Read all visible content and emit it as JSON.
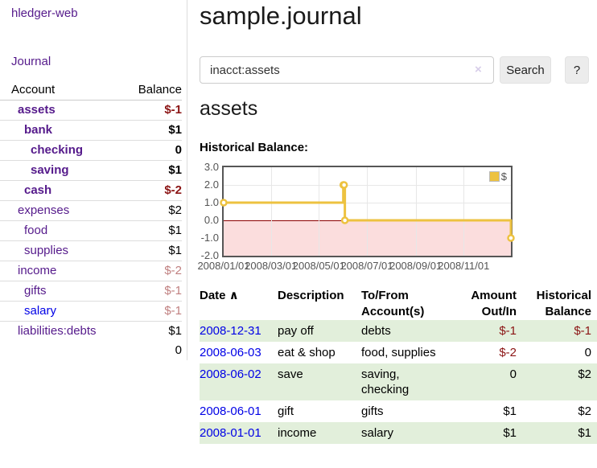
{
  "sidebar": {
    "brand": "hledger-web",
    "nav_journal": "Journal",
    "accounts_table": {
      "headers": {
        "account": "Account",
        "balance": "Balance"
      },
      "rows": [
        {
          "name": "assets",
          "depth": 1,
          "bold": true,
          "link": "purple",
          "balance": "$-1",
          "balance_style": "neg"
        },
        {
          "name": "bank",
          "depth": 2,
          "bold": true,
          "link": "purple",
          "balance": "$1",
          "balance_style": "pos"
        },
        {
          "name": "checking",
          "depth": 3,
          "bold": true,
          "link": "purple",
          "balance": "0",
          "balance_style": "pos"
        },
        {
          "name": "saving",
          "depth": 3,
          "bold": true,
          "link": "purple",
          "balance": "$1",
          "balance_style": "pos"
        },
        {
          "name": "cash",
          "depth": 2,
          "bold": true,
          "link": "purple",
          "balance": "$-2",
          "balance_style": "neg"
        },
        {
          "name": "expenses",
          "depth": 1,
          "bold": false,
          "link": "purple",
          "balance": "$2",
          "balance_style": "pos"
        },
        {
          "name": "food",
          "depth": 2,
          "bold": false,
          "link": "purple",
          "balance": "$1",
          "balance_style": "pos"
        },
        {
          "name": "supplies",
          "depth": 2,
          "bold": false,
          "link": "purple",
          "balance": "$1",
          "balance_style": "pos"
        },
        {
          "name": "income",
          "depth": 1,
          "bold": false,
          "link": "purple",
          "balance": "$-2",
          "balance_style": "negfade"
        },
        {
          "name": "gifts",
          "depth": 2,
          "bold": false,
          "link": "purple",
          "balance": "$-1",
          "balance_style": "negfade"
        },
        {
          "name": "salary",
          "depth": 2,
          "bold": false,
          "link": "blue",
          "balance": "$-1",
          "balance_style": "negfade"
        },
        {
          "name": "liabilities:debts",
          "depth": 1,
          "bold": false,
          "link": "purple",
          "balance": "$1",
          "balance_style": "pos"
        }
      ],
      "total": "0"
    }
  },
  "main": {
    "title": "sample.journal",
    "search": {
      "value": "inacct:assets",
      "clear_icon": "×",
      "button_label": "Search",
      "help_label": "?"
    },
    "account_heading": "assets",
    "chart": {
      "label": "Historical Balance:",
      "chart_data": {
        "type": "line",
        "step": true,
        "series": [
          {
            "name": "$",
            "color": "#EDC240",
            "points": [
              [
                "2008-01-01",
                1
              ],
              [
                "2008-06-01",
                2
              ],
              [
                "2008-06-02",
                2
              ],
              [
                "2008-06-03",
                0
              ],
              [
                "2008-12-31",
                -1
              ]
            ]
          }
        ],
        "x_range": [
          "2008-01-01",
          "2008-12-31"
        ],
        "ylim": [
          -2,
          3
        ],
        "y_ticks": [
          "3.0",
          "2.0",
          "1.0",
          "0.0",
          "-1.0",
          "-2.0"
        ],
        "x_ticks": [
          "2008/01/01",
          "2008/03/01",
          "2008/05/01",
          "2008/07/01",
          "2008/09/01",
          "2008/11/01"
        ],
        "legend_label": "$",
        "legend_position": "top-right",
        "grid": true,
        "negative_region_color": "#fbdddd",
        "zero_line_color": "#8b0000"
      }
    },
    "register_table": {
      "header_line1": [
        "Date",
        "Description",
        "To/From",
        "Amount",
        "Historical"
      ],
      "header_line2": [
        "",
        "",
        "Account(s)",
        "Out/In",
        "Balance"
      ],
      "sort_icon": "∧",
      "rows": [
        {
          "date": "2008-12-31",
          "description": "pay off",
          "accounts": "debts",
          "amount": "$-1",
          "balance": "$-1"
        },
        {
          "date": "2008-06-03",
          "description": "eat & shop",
          "accounts": "food, supplies",
          "amount": "$-2",
          "balance": "0"
        },
        {
          "date": "2008-06-02",
          "description": "save",
          "accounts": "saving, checking",
          "amount": "0",
          "balance": "$2"
        },
        {
          "date": "2008-06-01",
          "description": "gift",
          "accounts": "gifts",
          "amount": "$1",
          "balance": "$2"
        },
        {
          "date": "2008-01-01",
          "description": "income",
          "accounts": "salary",
          "amount": "$1",
          "balance": "$1"
        }
      ]
    }
  }
}
